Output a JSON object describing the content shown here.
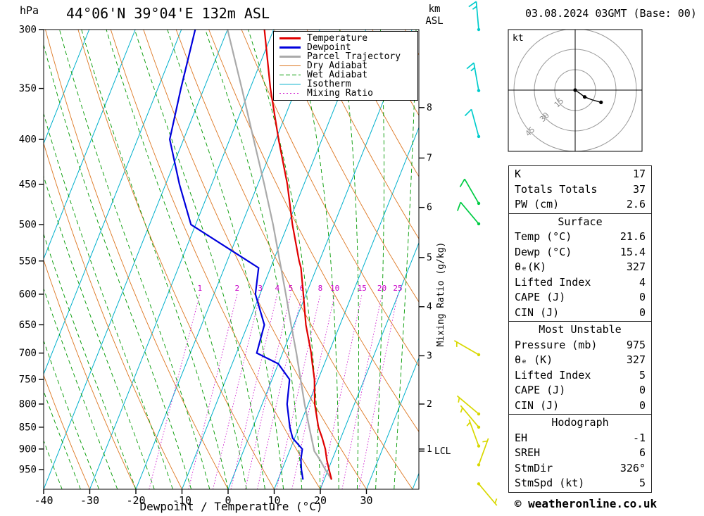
{
  "header": {
    "title": "44°06'N 39°04'E 132m ASL",
    "datetime": "03.08.2024 03GMT (Base: 00)",
    "pressure_unit": "hPa",
    "altitude_unit_line1": "km",
    "altitude_unit_line2": "ASL"
  },
  "footer": {
    "copyright": "© weatheronline.co.uk"
  },
  "colors": {
    "temperature": "#e00000",
    "dewpoint": "#0000dd",
    "parcel": "#aaaaaa",
    "dry_adiabat": "#dd7722",
    "wet_adiabat": "#009900",
    "isotherm": "#00b0cc",
    "mixing_ratio": "#c800c8",
    "barb_high": "#00cccc",
    "barb_mid": "#00cc44",
    "barb_low": "#d8d800",
    "hodo_ring": "#999999"
  },
  "legend": {
    "items": [
      {
        "label": "Temperature",
        "color": "#e00000",
        "width": 3,
        "dash": ""
      },
      {
        "label": "Dewpoint",
        "color": "#0000dd",
        "width": 3,
        "dash": ""
      },
      {
        "label": "Parcel Trajectory",
        "color": "#aaaaaa",
        "width": 3,
        "dash": ""
      },
      {
        "label": "Dry Adiabat",
        "color": "#dd7722",
        "width": 1,
        "dash": ""
      },
      {
        "label": "Wet Adiabat",
        "color": "#009900",
        "width": 1,
        "dash": "6 3"
      },
      {
        "label": "Isotherm",
        "color": "#00b0cc",
        "width": 1,
        "dash": ""
      },
      {
        "label": "Mixing Ratio",
        "color": "#c800c8",
        "width": 1,
        "dash": "2 3"
      }
    ]
  },
  "axes": {
    "pressure_ticks": [
      300,
      350,
      400,
      450,
      500,
      550,
      600,
      650,
      700,
      750,
      800,
      850,
      900,
      950
    ],
    "temp_ticks": [
      -40,
      -30,
      -20,
      -10,
      0,
      10,
      20,
      30
    ],
    "temp_axis_label": "Dewpoint / Temperature (°C)",
    "mixing_ratio_axis_label": "Mixing Ratio (g/kg)",
    "km_ticks": [
      {
        "km": 1,
        "p": 900
      },
      {
        "km": 2,
        "p": 800
      },
      {
        "km": 3,
        "p": 705
      },
      {
        "km": 4,
        "p": 620
      },
      {
        "km": 5,
        "p": 545
      },
      {
        "km": 6,
        "p": 478
      },
      {
        "km": 7,
        "p": 420
      },
      {
        "km": 8,
        "p": 368
      }
    ],
    "lcl": {
      "label": "LCL",
      "p": 905
    }
  },
  "chart_data": {
    "type": "skewt-log-p",
    "pressure_range_hpa": [
      300,
      1000
    ],
    "temp_range_c": [
      -40,
      40
    ],
    "isotherm_step_c": 10,
    "dry_adiabat_step_k": 10,
    "wet_adiabat_step_c": 4,
    "mixing_ratio_lines_gkg": [
      1,
      2,
      3,
      4,
      5,
      6,
      8,
      10,
      15,
      20,
      25
    ],
    "pressure_hpa": [
      975,
      950,
      925,
      900,
      875,
      850,
      800,
      750,
      720,
      700,
      650,
      600,
      560,
      550,
      500,
      450,
      400,
      350,
      300
    ],
    "temperature_c": [
      21.6,
      20.2,
      18.8,
      17.6,
      16.0,
      14.2,
      11.4,
      9.2,
      7.4,
      6.2,
      2.6,
      -0.6,
      -3.4,
      -4.4,
      -9.0,
      -13.6,
      -19.4,
      -25.6,
      -32.0
    ],
    "dewpoint_c": [
      15.4,
      14.2,
      13.2,
      12.6,
      9.6,
      8.0,
      5.4,
      3.8,
      0.0,
      -5.6,
      -6.4,
      -11.0,
      -12.6,
      -15.5,
      -31.0,
      -37.0,
      -43.0,
      -45.0,
      -47.0
    ],
    "parcel": {
      "pressure_hpa": [
        975,
        950,
        925,
        905,
        850,
        800,
        750,
        700,
        650,
        600,
        550,
        500,
        450,
        400,
        350,
        300
      ],
      "temperature_c": [
        21.6,
        19.4,
        17.3,
        15.4,
        12.2,
        9.2,
        6.2,
        3.0,
        -0.6,
        -4.4,
        -8.6,
        -13.2,
        -18.6,
        -24.8,
        -31.8,
        -40.0
      ]
    },
    "wind_barbs": [
      {
        "p": 300,
        "dir_deg": 355,
        "speed_kt": 15,
        "color_key": "barb_high"
      },
      {
        "p": 352,
        "dir_deg": 350,
        "speed_kt": 15,
        "color_key": "barb_high"
      },
      {
        "p": 397,
        "dir_deg": 345,
        "speed_kt": 10,
        "color_key": "barb_high"
      },
      {
        "p": 473,
        "dir_deg": 330,
        "speed_kt": 10,
        "color_key": "barb_mid"
      },
      {
        "p": 499,
        "dir_deg": 320,
        "speed_kt": 10,
        "color_key": "barb_mid"
      },
      {
        "p": 703,
        "dir_deg": 300,
        "speed_kt": 5,
        "color_key": "barb_low"
      },
      {
        "p": 821,
        "dir_deg": 310,
        "speed_kt": 5,
        "color_key": "barb_low"
      },
      {
        "p": 850,
        "dir_deg": 320,
        "speed_kt": 5,
        "color_key": "barb_low"
      },
      {
        "p": 893,
        "dir_deg": 340,
        "speed_kt": 5,
        "color_key": "barb_low"
      },
      {
        "p": 938,
        "dir_deg": 20,
        "speed_kt": 5,
        "color_key": "barb_low"
      },
      {
        "p": 986,
        "dir_deg": 140,
        "speed_kt": 5,
        "color_key": "barb_low"
      }
    ],
    "hodograph": {
      "unit_label": "kt",
      "ring_labels_kt": [
        15,
        30,
        45
      ],
      "trace_uv_kt": [
        [
          0,
          0
        ],
        [
          3,
          -2
        ],
        [
          7,
          -5
        ],
        [
          12,
          -7
        ],
        [
          19,
          -9
        ]
      ],
      "dot_indices": [
        0,
        2,
        4
      ],
      "storm_dir_deg": 326,
      "storm_speed_kt": 5
    }
  },
  "stats_table": {
    "sections": [
      {
        "header": null,
        "rows": [
          {
            "label": "K",
            "value": "17"
          },
          {
            "label": "Totals Totals",
            "value": "37"
          },
          {
            "label": "PW (cm)",
            "value": "2.6"
          }
        ]
      },
      {
        "header": "Surface",
        "rows": [
          {
            "label": "Temp (°C)",
            "value": "21.6"
          },
          {
            "label": "Dewp (°C)",
            "value": "15.4"
          },
          {
            "label": "θₑ(K)",
            "value": "327"
          },
          {
            "label": "Lifted Index",
            "value": "4"
          },
          {
            "label": "CAPE (J)",
            "value": "0"
          },
          {
            "label": "CIN (J)",
            "value": "0"
          }
        ]
      },
      {
        "header": "Most Unstable",
        "rows": [
          {
            "label": "Pressure (mb)",
            "value": "975"
          },
          {
            "label": "θₑ (K)",
            "value": "327"
          },
          {
            "label": "Lifted Index",
            "value": "5"
          },
          {
            "label": "CAPE (J)",
            "value": "0"
          },
          {
            "label": "CIN (J)",
            "value": "0"
          }
        ]
      },
      {
        "header": "Hodograph",
        "rows": [
          {
            "label": "EH",
            "value": "-1"
          },
          {
            "label": "SREH",
            "value": "6"
          },
          {
            "label": "StmDir",
            "value": "326°"
          },
          {
            "label": "StmSpd (kt)",
            "value": "5"
          }
        ]
      }
    ]
  }
}
